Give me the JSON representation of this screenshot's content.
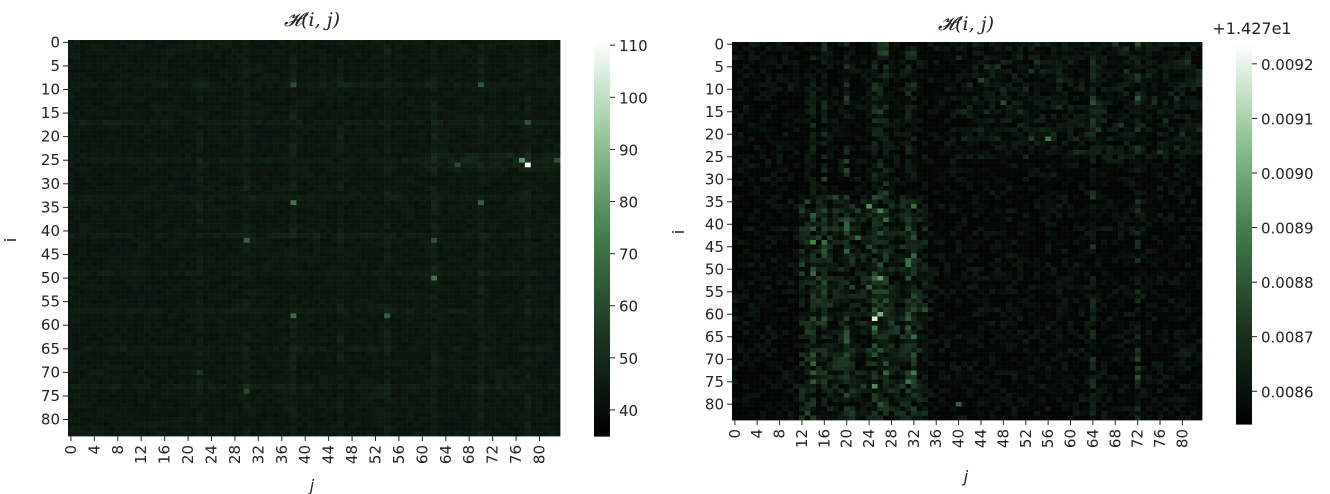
{
  "chart_data": [
    {
      "type": "heatmap",
      "title": "𝓗(i, j)",
      "xlabel": "j",
      "ylabel": "i",
      "rows": 84,
      "cols": 84,
      "x_tick_labels": [
        "0",
        "4",
        "8",
        "12",
        "16",
        "20",
        "24",
        "28",
        "32",
        "36",
        "40",
        "44",
        "48",
        "52",
        "56",
        "60",
        "64",
        "68",
        "72",
        "76",
        "80"
      ],
      "y_tick_labels": [
        "0",
        "5",
        "10",
        "15",
        "20",
        "25",
        "30",
        "35",
        "40",
        "45",
        "50",
        "55",
        "60",
        "65",
        "70",
        "75",
        "80"
      ],
      "colorbar": {
        "min": 35,
        "max": 111,
        "ticks": [
          "40",
          "50",
          "60",
          "70",
          "80",
          "90",
          "100",
          "110"
        ],
        "tick_values": [
          40,
          50,
          60,
          70,
          80,
          90,
          100,
          110
        ],
        "offset_text": ""
      },
      "colormap": [
        "#000000",
        "#1a3320",
        "#3f7a49",
        "#8fc592",
        "#ffffff"
      ],
      "base_value": 44,
      "hot_columns": [
        22,
        30,
        38,
        46,
        54,
        62,
        70,
        78
      ],
      "hot_rows": [
        9,
        17,
        25,
        33,
        41,
        49,
        57,
        65,
        73
      ],
      "peaks": [
        {
          "i": 26,
          "j": 78,
          "value": 110
        },
        {
          "i": 25,
          "j": 77,
          "value": 80
        },
        {
          "i": 25,
          "j": 83,
          "value": 62
        },
        {
          "i": 26,
          "j": 66,
          "value": 60
        },
        {
          "i": 34,
          "j": 38,
          "value": 72
        },
        {
          "i": 34,
          "j": 70,
          "value": 66
        },
        {
          "i": 9,
          "j": 38,
          "value": 62
        },
        {
          "i": 9,
          "j": 70,
          "value": 64
        },
        {
          "i": 17,
          "j": 78,
          "value": 62
        },
        {
          "i": 42,
          "j": 30,
          "value": 66
        },
        {
          "i": 42,
          "j": 62,
          "value": 62
        },
        {
          "i": 50,
          "j": 62,
          "value": 72
        },
        {
          "i": 58,
          "j": 38,
          "value": 70
        },
        {
          "i": 58,
          "j": 54,
          "value": 66
        },
        {
          "i": 74,
          "j": 30,
          "value": 60
        },
        {
          "i": 70,
          "j": 22,
          "value": 56
        }
      ]
    },
    {
      "type": "heatmap",
      "title": "𝓗(i, j)",
      "xlabel": "j",
      "ylabel": "i",
      "rows": 84,
      "cols": 84,
      "x_tick_labels": [
        "0",
        "4",
        "8",
        "12",
        "16",
        "20",
        "24",
        "28",
        "32",
        "36",
        "40",
        "44",
        "48",
        "52",
        "56",
        "60",
        "64",
        "68",
        "72",
        "76",
        "80"
      ],
      "y_tick_labels": [
        "0",
        "5",
        "10",
        "15",
        "20",
        "25",
        "30",
        "35",
        "40",
        "45",
        "50",
        "55",
        "60",
        "65",
        "70",
        "75",
        "80"
      ],
      "colorbar": {
        "min": 0.00854,
        "max": 0.00924,
        "ticks": [
          "0.0086",
          "0.0087",
          "0.0088",
          "0.0089",
          "0.0090",
          "0.0091",
          "0.0092"
        ],
        "tick_values": [
          0.0086,
          0.0087,
          0.0088,
          0.0089,
          0.009,
          0.0091,
          0.0092
        ],
        "offset_text": "+1.427e1"
      },
      "colormap": [
        "#000000",
        "#1a3320",
        "#3f7a49",
        "#8fc592",
        "#ffffff"
      ],
      "base_value": 0.00856,
      "hot_columns": [
        14,
        16,
        20,
        25,
        26,
        27,
        31,
        32,
        64,
        72
      ],
      "peaks": [
        {
          "i": 61,
          "j": 25,
          "value": 0.00918
        },
        {
          "i": 60,
          "j": 26,
          "value": 0.00902
        },
        {
          "i": 52,
          "j": 26,
          "value": 0.00896
        },
        {
          "i": 36,
          "j": 24,
          "value": 0.00894
        },
        {
          "i": 37,
          "j": 26,
          "value": 0.0089
        },
        {
          "i": 44,
          "j": 14,
          "value": 0.0089
        },
        {
          "i": 44,
          "j": 16,
          "value": 0.00886
        },
        {
          "i": 76,
          "j": 25,
          "value": 0.00892
        },
        {
          "i": 36,
          "j": 32,
          "value": 0.00886
        },
        {
          "i": 21,
          "j": 56,
          "value": 0.00888
        },
        {
          "i": 43,
          "j": 22,
          "value": 0.00884
        },
        {
          "i": 54,
          "j": 24,
          "value": 0.00882
        },
        {
          "i": 80,
          "j": 40,
          "value": 0.00882
        },
        {
          "i": 13,
          "j": 48,
          "value": 0.00878
        },
        {
          "i": 12,
          "j": 72,
          "value": 0.0088
        },
        {
          "i": 8,
          "j": 44,
          "value": 0.00876
        },
        {
          "i": 69,
          "j": 32,
          "value": 0.00878
        }
      ]
    }
  ]
}
